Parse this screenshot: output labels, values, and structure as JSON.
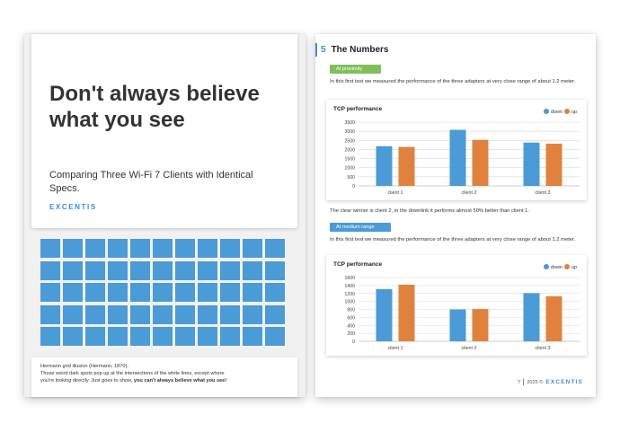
{
  "left_page": {
    "title": "Don't always believe what you see",
    "subtitle": "Comparing Three Wi-Fi 7 Clients with Identical Specs.",
    "logo": "EXCENTIS",
    "grid": {
      "rows": 5,
      "cols": 11,
      "color": "#4a9bd6"
    },
    "caption": {
      "line1": "Hermann grid illusion (Hermann, 1870).",
      "line2": "Those weird dark spots pop up at the intersections of the white lines, except where",
      "line3_start": "you're looking directly. Just goes to show, ",
      "line3_bold": "you can't always believe what you see!"
    }
  },
  "right_page": {
    "section_number": "5",
    "section_title": "The Numbers",
    "tag1": "At proximity",
    "para1": "In this first test we measured the performance of the three adapters at very close range of about 1.2 meter.",
    "para2": "The clear winner is client 2, in the downlink it performs almost 50% better than client 1.",
    "tag2": "At medium range",
    "para3": "In this first test we measured the performance of the three adapters at very close range of about 1.2 meter.",
    "footer": {
      "page": "7",
      "year": "2025 ©",
      "logo": "EXCENTIS"
    }
  },
  "colors": {
    "accent": "#3e8ed0",
    "down": "#4a9bd6",
    "up": "#e0823d",
    "green_tag": "#7fbf5a"
  },
  "chart_data": [
    {
      "type": "bar",
      "title": "TCP performance",
      "categories": [
        "client 1",
        "client 2",
        "client 3"
      ],
      "series": [
        {
          "name": "down",
          "values": [
            2180,
            3080,
            2380
          ]
        },
        {
          "name": "up",
          "values": [
            2140,
            2530,
            2320
          ]
        }
      ],
      "ylim": [
        0,
        3500
      ],
      "yticks": [
        0,
        500,
        1000,
        1500,
        2000,
        2500,
        3000,
        3500
      ],
      "legend": "top-right",
      "grid": true
    },
    {
      "type": "bar",
      "title": "TCP performance",
      "categories": [
        "client 1",
        "client 2",
        "client 3"
      ],
      "series": [
        {
          "name": "down",
          "values": [
            1310,
            800,
            1210
          ]
        },
        {
          "name": "up",
          "values": [
            1420,
            810,
            1130
          ]
        }
      ],
      "ylim": [
        0,
        1600
      ],
      "yticks": [
        0,
        200,
        400,
        600,
        800,
        1000,
        1200,
        1400,
        1600
      ],
      "legend": "top-right",
      "grid": true
    }
  ]
}
